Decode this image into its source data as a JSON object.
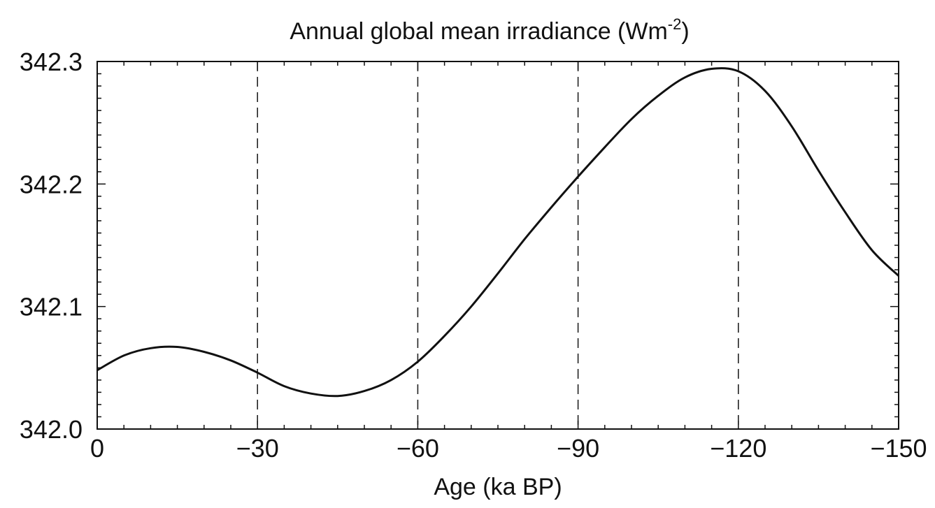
{
  "chart_data": {
    "type": "line",
    "title": "Annual global mean irradiance (Wm",
    "title_superscript": "-2",
    "title_suffix": ")",
    "xlabel": "Age (ka BP)",
    "ylabel": "",
    "xlim": [
      0,
      -150
    ],
    "ylim": [
      342.0,
      342.3
    ],
    "xticks": [
      0,
      -30,
      -60,
      -90,
      -120,
      -150
    ],
    "xtick_labels": [
      "0",
      "−30",
      "−60",
      "−90",
      "−120",
      "−150"
    ],
    "yticks": [
      342.0,
      342.1,
      342.2,
      342.3
    ],
    "ytick_labels": [
      "342.0",
      "342.1",
      "342.2",
      "342.3"
    ],
    "reference_lines_x": [
      -30,
      -60,
      -90,
      -120
    ],
    "grid": false,
    "line_color": "#111111",
    "series": [
      {
        "x": [
          0,
          -5,
          -10,
          -15,
          -20,
          -25,
          -30,
          -35,
          -40,
          -45,
          -50,
          -55,
          -60,
          -65,
          -70,
          -75,
          -80,
          -85,
          -90,
          -95,
          -100,
          -105,
          -110,
          -115,
          -120,
          -125,
          -130,
          -135,
          -140,
          -145,
          -150
        ],
        "values": [
          342.048,
          342.06,
          342.066,
          342.067,
          342.063,
          342.056,
          342.046,
          342.035,
          342.029,
          342.027,
          342.031,
          342.04,
          342.055,
          342.076,
          342.1,
          342.127,
          342.155,
          342.181,
          342.206,
          342.23,
          342.253,
          342.272,
          342.287,
          342.294,
          342.292,
          342.276,
          342.247,
          342.211,
          342.177,
          342.146,
          342.125
        ]
      }
    ]
  }
}
